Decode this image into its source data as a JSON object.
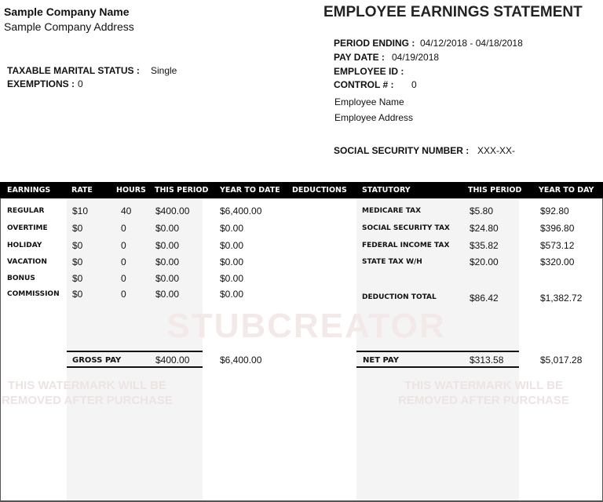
{
  "company": {
    "name": "Sample Company Name",
    "address": "Sample Company Address"
  },
  "title": "EMPLOYEE EARNINGS STATEMENT",
  "left_info": {
    "marital_label": "TAXABLE MARITAL STATUS :",
    "marital_value": "Single",
    "exemptions_label": "EXEMPTIONS :",
    "exemptions_value": "0"
  },
  "right_info": {
    "period_label": "PERIOD ENDING :",
    "period_value": "04/12/2018 - 04/18/2018",
    "paydate_label": "PAY DATE :",
    "paydate_value": "04/19/2018",
    "empid_label": "EMPLOYEE ID :",
    "empid_value": "",
    "control_label": "CONTROL # :",
    "control_value": "0",
    "employee_name": "Employee Name",
    "employee_address": "Employee Address",
    "ssn_label": "SOCIAL SECURITY NUMBER :",
    "ssn_value": "XXX-XX-"
  },
  "headers": [
    "EARNINGS",
    "RATE",
    "HOURS",
    "THIS PERIOD",
    "YEAR TO DATE",
    "DEDUCTIONS",
    "STATUTORY",
    "THIS PERIOD",
    "YEAR TO DAY"
  ],
  "earnings": [
    {
      "name": "REGULAR",
      "rate": "$10",
      "hours": "40",
      "period": "$400.00",
      "ytd": "$6,400.00"
    },
    {
      "name": "OVERTIME",
      "rate": "$0",
      "hours": "0",
      "period": "$0.00",
      "ytd": "$0.00"
    },
    {
      "name": "HOLIDAY",
      "rate": "$0",
      "hours": "0",
      "period": "$0.00",
      "ytd": "$0.00"
    },
    {
      "name": "VACATION",
      "rate": "$0",
      "hours": "0",
      "period": "$0.00",
      "ytd": "$0.00"
    },
    {
      "name": "BONUS",
      "rate": "$0",
      "hours": "0",
      "period": "$0.00",
      "ytd": "$0.00"
    },
    {
      "name": "COMMISSION",
      "rate": "$0",
      "hours": "0",
      "period": "$0.00",
      "ytd": "$0.00"
    }
  ],
  "statutory": [
    {
      "name": "MEDICARE TAX",
      "period": "$5.80",
      "ytd": "$92.80"
    },
    {
      "name": "SOCIAL SECURITY TAX",
      "period": "$24.80",
      "ytd": "$396.80"
    },
    {
      "name": "FEDERAL INCOME TAX",
      "period": "$35.82",
      "ytd": "$573.12"
    },
    {
      "name": "STATE TAX W/H",
      "period": "$20.00",
      "ytd": "$320.00"
    }
  ],
  "deduction_total": {
    "label": "DEDUCTION TOTAL",
    "period": "$86.42",
    "ytd": "$1,382.72"
  },
  "gross": {
    "label": "GROSS PAY",
    "period": "$400.00",
    "ytd": "$6,400.00"
  },
  "net": {
    "label": "NET PAY",
    "period": "$313.58",
    "ytd": "$5,017.28"
  },
  "watermark": {
    "brand": "STUBCREATOR",
    "notice_line1": "THIS WATERMARK WILL BE",
    "notice_line2": "REMOVED AFTER PURCHASE"
  }
}
